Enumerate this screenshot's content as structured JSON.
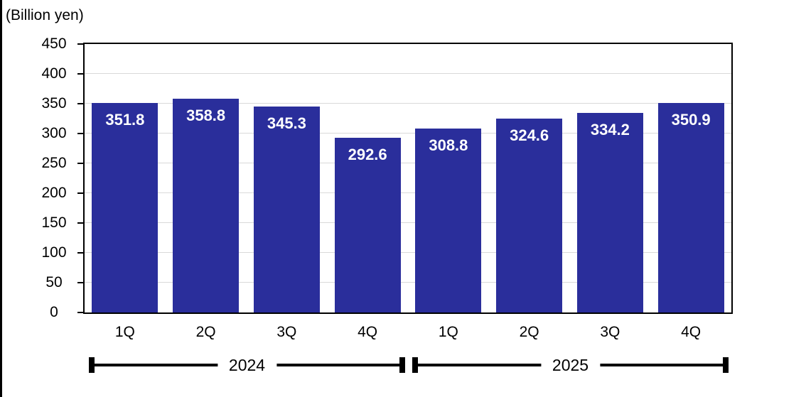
{
  "page": {
    "background": "#FFFFFF"
  },
  "colors": {
    "bar": "#2A2E9B",
    "bar-label": "#FFFFFF",
    "grid": "#D9D9D9",
    "axis": "#000000",
    "text": "#000000"
  },
  "chart_data": {
    "type": "bar",
    "unit_label": "(Billion yen)",
    "categories": [
      "1Q",
      "2Q",
      "3Q",
      "4Q",
      "1Q",
      "2Q",
      "3Q",
      "4Q"
    ],
    "values": [
      351.8,
      358.8,
      345.3,
      292.6,
      308.8,
      324.6,
      334.2,
      350.9
    ],
    "value_labels": [
      "351.8",
      "358.8",
      "345.3",
      "292.6",
      "308.8",
      "324.6",
      "334.2",
      "350.9"
    ],
    "year_groups": [
      {
        "label": "2024",
        "start_index": 0,
        "end_index": 3
      },
      {
        "label": "2025",
        "start_index": 4,
        "end_index": 7
      }
    ],
    "ylim": [
      0,
      450
    ],
    "yticks": [
      0,
      50,
      100,
      150,
      200,
      250,
      300,
      350,
      400,
      450
    ],
    "grid": true,
    "legend": false,
    "bar_color": "#2A2E9B",
    "value_label_color": "#FFFFFF"
  }
}
